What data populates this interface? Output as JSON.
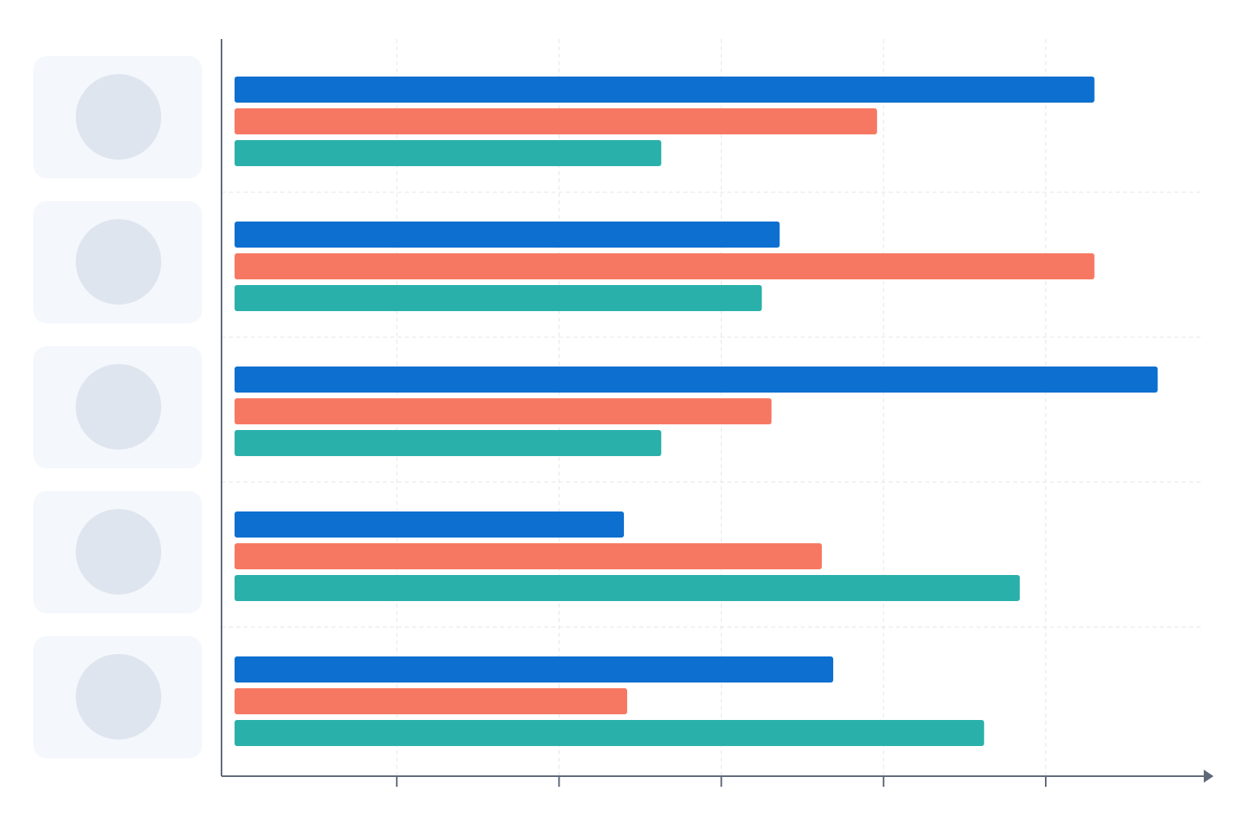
{
  "chart_data": {
    "type": "bar",
    "orientation": "horizontal",
    "title": "",
    "xlabel": "",
    "ylabel": "",
    "categories": [
      "",
      "",
      "",
      "",
      ""
    ],
    "series": [
      {
        "values": [
          5.3,
          3.36,
          5.69,
          2.4,
          3.69
        ]
      },
      {
        "values": [
          3.96,
          5.3,
          3.31,
          3.62,
          2.42
        ]
      },
      {
        "values": [
          2.63,
          3.25,
          2.63,
          4.84,
          4.62
        ]
      }
    ],
    "xlim": [
      0,
      6
    ],
    "x_ticks": [
      1,
      2,
      3,
      4,
      5
    ],
    "tick_labels_shown": false,
    "grid": true,
    "grid_style": "dashed",
    "legend": "none",
    "colors": [
      "#0d6fcf",
      "#f77862",
      "#2ab0aa"
    ],
    "category_markers": "placeholder-avatar-cards"
  }
}
